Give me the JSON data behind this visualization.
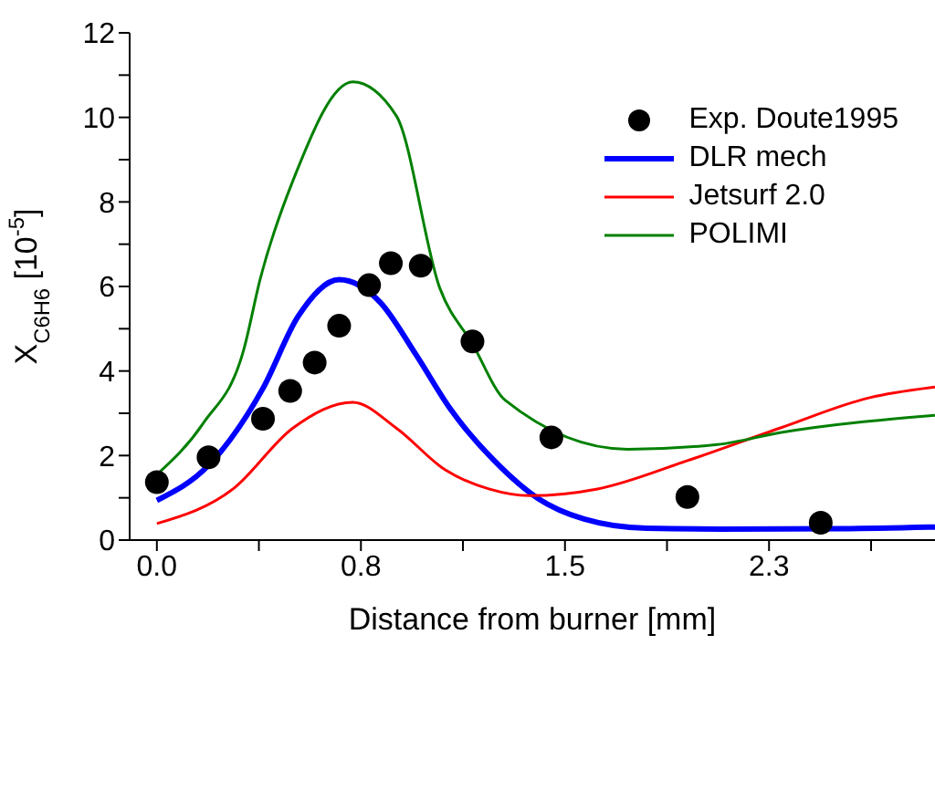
{
  "chart_data": {
    "type": "line",
    "xlabel": "Distance from burner [mm]",
    "ylabel": "X$_{C6H6}$ [10$^{-5}$]",
    "xlim": [
      -0.1,
      2.86
    ],
    "xticks": [
      {
        "value": 0,
        "label": "0.0"
      },
      {
        "value": 0.375,
        "label": null
      },
      {
        "value": 0.75,
        "label": "0.8"
      },
      {
        "value": 1.125,
        "label": null
      },
      {
        "value": 1.5,
        "label": "1.5"
      },
      {
        "value": 1.875,
        "label": null
      },
      {
        "value": 2.25,
        "label": "2.3"
      },
      {
        "value": 2.625,
        "label": null
      }
    ],
    "ylim": [
      0,
      12
    ],
    "yticks": [
      0,
      {
        "value": 1,
        "label": null
      },
      2,
      {
        "value": 3,
        "label": null
      },
      4,
      {
        "value": 5,
        "label": null
      },
      6,
      {
        "value": 7,
        "label": null
      },
      8,
      {
        "value": 9,
        "label": null
      },
      10,
      {
        "value": 11,
        "label": null
      },
      12
    ],
    "grid": false,
    "legend": "top right",
    "line_style": "solid",
    "series": [
      {
        "name": "Exp. Doute1995",
        "type": "scatter",
        "marker": "circle",
        "color": "#000000",
        "x": [
          0.0,
          0.19,
          0.39,
          0.49,
          0.58,
          0.67,
          0.78,
          0.86,
          0.97,
          1.16,
          1.45,
          1.95,
          2.44
        ],
        "values": [
          1.37,
          1.96,
          2.87,
          3.53,
          4.2,
          5.07,
          6.03,
          6.55,
          6.49,
          4.7,
          2.43,
          1.02,
          0.41
        ]
      },
      {
        "name": "DLR mech",
        "color": "#0000ff",
        "x": [
          0,
          0.19,
          0.39,
          0.52,
          0.67,
          0.82,
          0.95,
          1.08,
          1.24,
          1.4,
          1.57,
          1.8,
          2.07,
          2.52,
          2.86
        ],
        "values": [
          0.94,
          1.77,
          3.59,
          5.3,
          6.16,
          5.63,
          4.41,
          3.09,
          1.88,
          0.99,
          0.5,
          0.28,
          0.26,
          0.27,
          0.31
        ]
      },
      {
        "name": "Jetsurf 2.0",
        "color": "#ff0000",
        "x": [
          0,
          0.28,
          0.5,
          0.72,
          0.88,
          1.06,
          1.22,
          1.37,
          1.62,
          1.95,
          2.29,
          2.62,
          2.86
        ],
        "values": [
          0.39,
          1.21,
          2.65,
          3.26,
          2.65,
          1.66,
          1.21,
          1.05,
          1.21,
          1.88,
          2.65,
          3.37,
          3.62
        ]
      },
      {
        "name": "POLIMI",
        "color": "#008000",
        "x": [
          0,
          0.17,
          0.32,
          0.38,
          0.5,
          0.72,
          0.88,
          1.04,
          1.16,
          1.28,
          1.73,
          2.06,
          2.29,
          2.86
        ],
        "values": [
          1.55,
          2.76,
          4.52,
          6.18,
          8.5,
          10.84,
          10.04,
          5.96,
          4.64,
          3.31,
          2.15,
          2.26,
          2.54,
          2.95
        ]
      }
    ]
  }
}
